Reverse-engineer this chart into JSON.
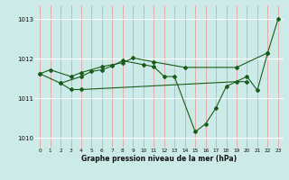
{
  "xlabel": "Graphe pression niveau de la mer (hPa)",
  "bg_color": "#cceae7",
  "line_color": "#1a5c1a",
  "grid_color_v": "#e8a0a0",
  "grid_color_h": "#ffffff",
  "xlim": [
    -0.5,
    23.5
  ],
  "ylim": [
    1009.75,
    1013.35
  ],
  "yticks": [
    1010,
    1011,
    1012,
    1013
  ],
  "ytick_labels": [
    "1010",
    "1011",
    "1012",
    "1013"
  ],
  "xticks": [
    0,
    1,
    2,
    3,
    4,
    5,
    6,
    7,
    8,
    9,
    10,
    11,
    12,
    13,
    14,
    15,
    16,
    17,
    18,
    19,
    20,
    21,
    22,
    23
  ],
  "series": [
    {
      "x": [
        0,
        1,
        3,
        4,
        6,
        8,
        9,
        11,
        14,
        19,
        22,
        23
      ],
      "y": [
        1011.62,
        1011.72,
        1011.55,
        1011.65,
        1011.8,
        1011.9,
        1012.02,
        1011.92,
        1011.78,
        1011.78,
        1012.15,
        1013.0
      ]
    },
    {
      "x": [
        0,
        2,
        4,
        5,
        6,
        7,
        8,
        10,
        11,
        12,
        13,
        15,
        16,
        17,
        18,
        20,
        21,
        22
      ],
      "y": [
        1011.62,
        1011.38,
        1011.55,
        1011.68,
        1011.72,
        1011.82,
        1011.95,
        1011.85,
        1011.8,
        1011.55,
        1011.55,
        1010.15,
        1010.35,
        1010.75,
        1011.3,
        1011.55,
        1011.2,
        1012.15
      ]
    },
    {
      "x": [
        2,
        3,
        4,
        19,
        20
      ],
      "y": [
        1011.38,
        1011.22,
        1011.22,
        1011.42,
        1011.42
      ]
    }
  ]
}
